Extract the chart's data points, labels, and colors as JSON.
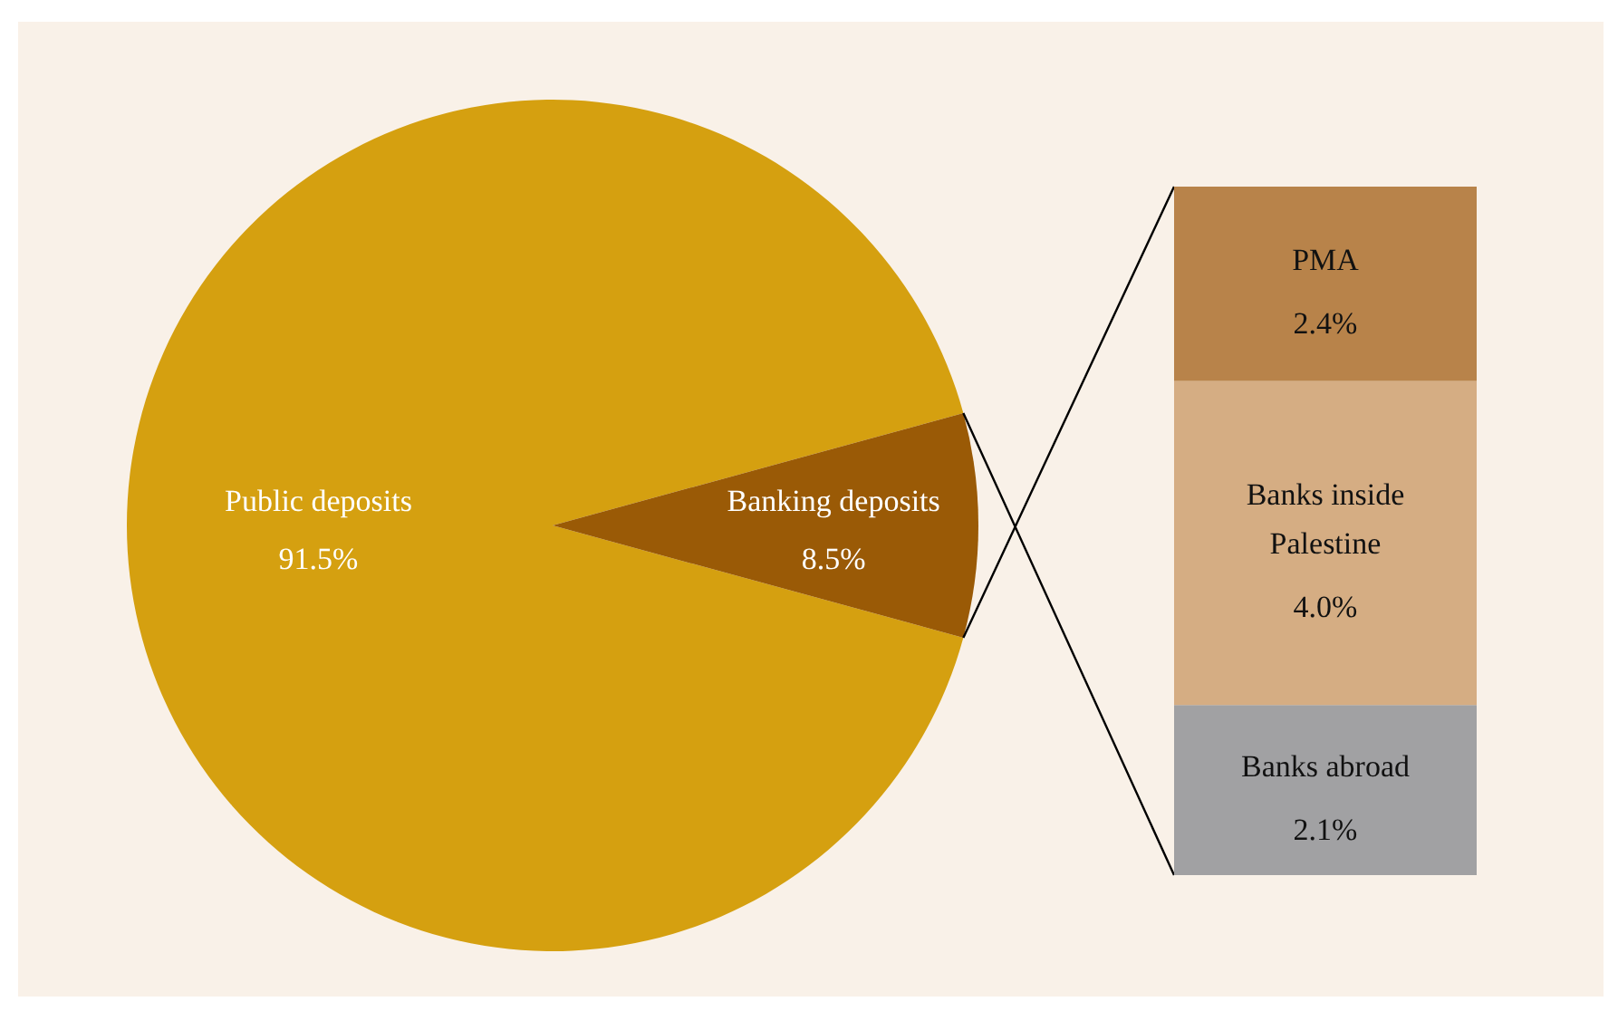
{
  "chart_data": [
    {
      "type": "pie",
      "categories": [
        "Public deposits",
        "Banking deposits"
      ],
      "values": [
        91.5,
        8.5
      ],
      "colors": [
        "#d5a010",
        "#9a5a06"
      ],
      "value_labels": [
        "91.5%",
        "8.5%"
      ]
    },
    {
      "type": "bar",
      "stacked": true,
      "categories": [
        null
      ],
      "series": [
        {
          "name": "Banks abroad",
          "color": "#a1a1a3",
          "values": [
            2.1
          ],
          "value_labels": [
            "2.1%"
          ]
        },
        {
          "name": "Banks inside Palestine",
          "color": "#d5ad83",
          "values": [
            4.0
          ],
          "value_labels": [
            "4.0%"
          ]
        },
        {
          "name": "PMA",
          "color": "#b8834a",
          "values": [
            2.4
          ],
          "value_labels": [
            "2.4%"
          ]
        }
      ]
    }
  ]
}
